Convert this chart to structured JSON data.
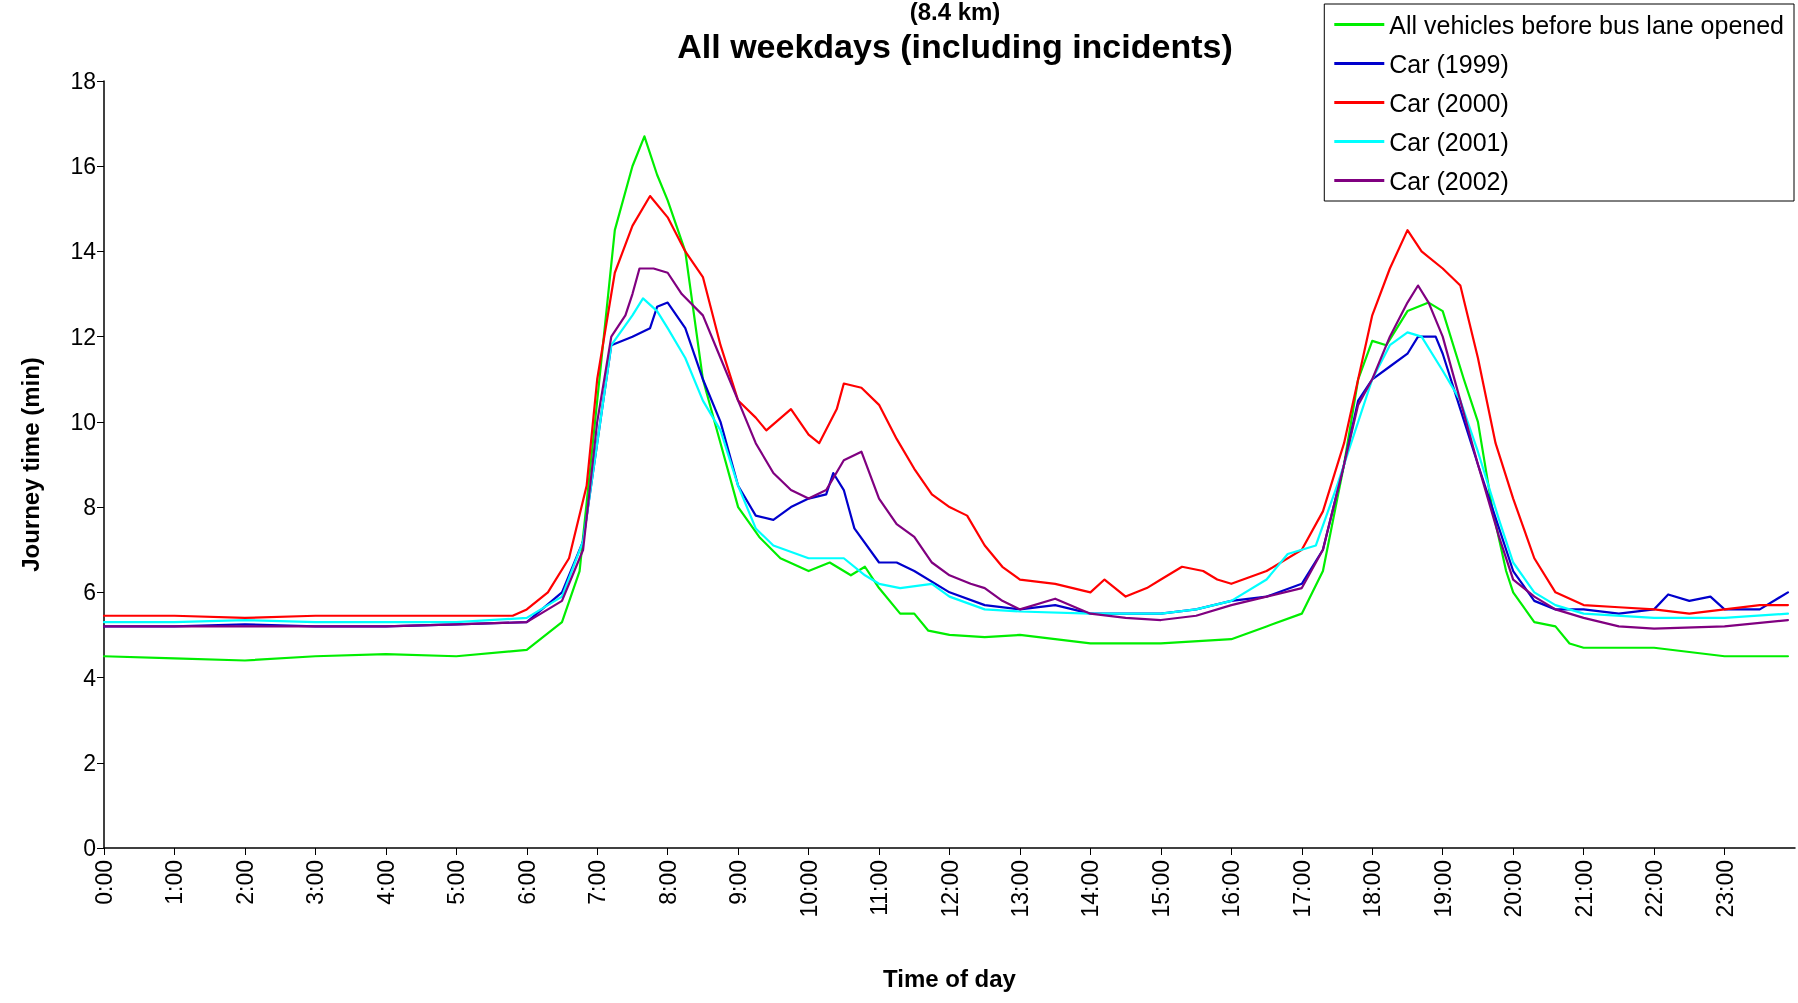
{
  "chart_data": {
    "type": "line",
    "title": "(8.4 km)",
    "subtitle": "All weekdays (including incidents)",
    "xlabel": "Time of day",
    "ylabel": "Journey time (min)",
    "xlim": [
      0,
      24
    ],
    "xticks": [
      {
        "value": 0,
        "label": "0:00"
      },
      {
        "value": 1,
        "label": "1:00"
      },
      {
        "value": 2,
        "label": "2:00"
      },
      {
        "value": 3,
        "label": "3:00"
      },
      {
        "value": 4,
        "label": "4:00"
      },
      {
        "value": 5,
        "label": "5:00"
      },
      {
        "value": 6,
        "label": "6:00"
      },
      {
        "value": 7,
        "label": "7:00"
      },
      {
        "value": 8,
        "label": "8:00"
      },
      {
        "value": 9,
        "label": "9:00"
      },
      {
        "value": 10,
        "label": "10:00"
      },
      {
        "value": 11,
        "label": "11:00"
      },
      {
        "value": 12,
        "label": "12:00"
      },
      {
        "value": 13,
        "label": "13:00"
      },
      {
        "value": 14,
        "label": "14:00"
      },
      {
        "value": 15,
        "label": "15:00"
      },
      {
        "value": 16,
        "label": "16:00"
      },
      {
        "value": 17,
        "label": "17:00"
      },
      {
        "value": 18,
        "label": "18:00"
      },
      {
        "value": 19,
        "label": "19:00"
      },
      {
        "value": 20,
        "label": "20:00"
      },
      {
        "value": 21,
        "label": "21:00"
      },
      {
        "value": 22,
        "label": "22:00"
      },
      {
        "value": 23,
        "label": "23:00"
      }
    ],
    "ylim": [
      0,
      18
    ],
    "yticks": [
      0,
      2,
      4,
      6,
      8,
      10,
      12,
      14,
      16,
      18
    ],
    "grid": false,
    "legend": "top right",
    "marker": "none",
    "line_style": "solid",
    "series": [
      {
        "name": "All vehicles before bus lane opened",
        "color": "#00ee00",
        "x": [
          0,
          1,
          2,
          3,
          4,
          5,
          6,
          6.5,
          6.75,
          7,
          7.25,
          7.5,
          7.67,
          7.85,
          8,
          8.25,
          8.5,
          8.75,
          9,
          9.3,
          9.6,
          10,
          10.3,
          10.6,
          10.8,
          11,
          11.3,
          11.5,
          11.7,
          12,
          12.5,
          13,
          13.5,
          14,
          15,
          16,
          16.5,
          17,
          17.3,
          17.6,
          17.8,
          18,
          18.2,
          18.5,
          18.8,
          19,
          19.3,
          19.5,
          19.7,
          19.9,
          20,
          20.3,
          20.6,
          20.8,
          21,
          22,
          23,
          23.9
        ],
        "values": [
          4.5,
          4.45,
          4.4,
          4.5,
          4.55,
          4.5,
          4.65,
          5.3,
          6.5,
          10.5,
          14.5,
          16.0,
          16.7,
          15.8,
          15.2,
          14.0,
          11.0,
          9.5,
          8.0,
          7.3,
          6.8,
          6.5,
          6.7,
          6.4,
          6.6,
          6.1,
          5.5,
          5.5,
          5.1,
          5.0,
          4.95,
          5.0,
          4.9,
          4.8,
          4.8,
          4.9,
          5.2,
          5.5,
          6.5,
          9.0,
          11.0,
          11.9,
          11.8,
          12.6,
          12.8,
          12.6,
          11.0,
          10.0,
          8.0,
          6.5,
          6.0,
          5.3,
          5.2,
          4.8,
          4.7,
          4.7,
          4.5,
          4.5
        ]
      },
      {
        "name": "Car (1999)",
        "color": "#0000cc",
        "x": [
          0,
          1,
          2,
          3,
          4,
          5,
          6,
          6.5,
          6.8,
          7,
          7.2,
          7.5,
          7.75,
          7.85,
          8,
          8.25,
          8.5,
          8.75,
          9,
          9.25,
          9.5,
          9.75,
          10,
          10.25,
          10.35,
          10.5,
          10.65,
          11,
          11.25,
          11.5,
          12,
          12.5,
          13,
          13.5,
          14,
          15,
          15.5,
          16,
          16.5,
          17,
          17.3,
          17.6,
          17.8,
          18,
          18.25,
          18.5,
          18.65,
          18.9,
          19,
          19.25,
          19.5,
          19.8,
          20,
          20.3,
          20.6,
          21,
          21.5,
          22,
          22.2,
          22.5,
          22.8,
          23,
          23.5,
          23.9
        ],
        "values": [
          5.2,
          5.2,
          5.25,
          5.2,
          5.2,
          5.25,
          5.3,
          6.0,
          7.2,
          9.5,
          11.8,
          12.0,
          12.2,
          12.7,
          12.8,
          12.2,
          11.0,
          10.0,
          8.5,
          7.8,
          7.7,
          8.0,
          8.2,
          8.3,
          8.8,
          8.4,
          7.5,
          6.7,
          6.7,
          6.5,
          6.0,
          5.7,
          5.6,
          5.7,
          5.5,
          5.5,
          5.6,
          5.8,
          5.9,
          6.2,
          7.0,
          9.0,
          10.5,
          11.0,
          11.3,
          11.6,
          12.0,
          12.0,
          11.6,
          10.3,
          9.0,
          7.5,
          6.5,
          5.8,
          5.6,
          5.6,
          5.5,
          5.6,
          5.95,
          5.8,
          5.9,
          5.6,
          5.6,
          6.0
        ]
      },
      {
        "name": "Car (2000)",
        "color": "#ff0000",
        "x": [
          0,
          1,
          2,
          3,
          4,
          5,
          5.8,
          6,
          6.3,
          6.6,
          6.85,
          7,
          7.25,
          7.5,
          7.75,
          8,
          8.25,
          8.5,
          8.75,
          9,
          9.25,
          9.4,
          9.75,
          10,
          10.15,
          10.4,
          10.5,
          10.75,
          11,
          11.25,
          11.5,
          11.75,
          12,
          12.25,
          12.5,
          12.75,
          13,
          13.5,
          14,
          14.2,
          14.5,
          14.8,
          15,
          15.3,
          15.6,
          15.8,
          16,
          16.5,
          17,
          17.3,
          17.6,
          17.8,
          18,
          18.25,
          18.5,
          18.7,
          19,
          19.25,
          19.5,
          19.75,
          20,
          20.3,
          20.6,
          21,
          21.5,
          22,
          22.5,
          23,
          23.5,
          23.9
        ],
        "values": [
          5.45,
          5.45,
          5.4,
          5.45,
          5.45,
          5.45,
          5.45,
          5.6,
          6.0,
          6.8,
          8.5,
          11.0,
          13.5,
          14.6,
          15.3,
          14.8,
          14.0,
          13.4,
          11.8,
          10.5,
          10.1,
          9.8,
          10.3,
          9.7,
          9.5,
          10.3,
          10.9,
          10.8,
          10.4,
          9.6,
          8.9,
          8.3,
          8.0,
          7.8,
          7.1,
          6.6,
          6.3,
          6.2,
          6.0,
          6.3,
          5.9,
          6.1,
          6.3,
          6.6,
          6.5,
          6.3,
          6.2,
          6.5,
          7.0,
          7.9,
          9.5,
          11.0,
          12.5,
          13.6,
          14.5,
          14.0,
          13.6,
          13.2,
          11.5,
          9.5,
          8.2,
          6.8,
          6.0,
          5.7,
          5.65,
          5.6,
          5.5,
          5.6,
          5.7,
          5.7
        ]
      },
      {
        "name": "Car (2001)",
        "color": "#00ffff",
        "x": [
          0,
          1,
          2,
          3,
          4,
          5,
          6,
          6.5,
          6.8,
          7,
          7.2,
          7.5,
          7.65,
          7.85,
          8,
          8.25,
          8.5,
          8.75,
          9,
          9.25,
          9.5,
          10,
          10.3,
          10.5,
          10.8,
          11,
          11.3,
          11.75,
          12,
          12.5,
          13,
          14,
          15,
          15.5,
          16,
          16.5,
          16.8,
          17.2,
          17.5,
          17.8,
          18,
          18.25,
          18.5,
          18.7,
          19,
          19.25,
          19.5,
          19.8,
          20,
          20.3,
          20.6,
          21,
          22,
          23,
          23.9
        ],
        "values": [
          5.3,
          5.3,
          5.35,
          5.3,
          5.3,
          5.3,
          5.4,
          5.9,
          7.2,
          9.5,
          11.8,
          12.5,
          12.9,
          12.6,
          12.2,
          11.5,
          10.5,
          9.8,
          8.5,
          7.5,
          7.1,
          6.8,
          6.8,
          6.8,
          6.4,
          6.2,
          6.1,
          6.2,
          5.9,
          5.6,
          5.55,
          5.5,
          5.5,
          5.6,
          5.8,
          6.3,
          6.9,
          7.1,
          8.5,
          10.0,
          11.0,
          11.8,
          12.1,
          12.0,
          11.2,
          10.5,
          9.3,
          7.7,
          6.7,
          6.0,
          5.7,
          5.5,
          5.4,
          5.4,
          5.5
        ]
      },
      {
        "name": "Car (2002)",
        "color": "#800080",
        "x": [
          0,
          1,
          2,
          3,
          4,
          5,
          6,
          6.5,
          6.8,
          7,
          7.2,
          7.4,
          7.5,
          7.6,
          7.8,
          8,
          8.2,
          8.5,
          8.75,
          9,
          9.25,
          9.5,
          9.75,
          10,
          10.25,
          10.5,
          10.75,
          11,
          11.25,
          11.5,
          11.75,
          12,
          12.3,
          12.5,
          12.75,
          13,
          13.5,
          14,
          14.5,
          15,
          15.5,
          16,
          16.5,
          17,
          17.3,
          17.6,
          17.8,
          18,
          18.25,
          18.5,
          18.65,
          18.8,
          19,
          19.25,
          19.5,
          19.8,
          20,
          20.3,
          20.6,
          21,
          21.5,
          22,
          23,
          23.9
        ],
        "values": [
          5.2,
          5.2,
          5.2,
          5.2,
          5.2,
          5.25,
          5.3,
          5.8,
          7.0,
          10.0,
          12.0,
          12.5,
          13.0,
          13.6,
          13.6,
          13.5,
          13.0,
          12.5,
          11.5,
          10.5,
          9.5,
          8.8,
          8.4,
          8.2,
          8.4,
          9.1,
          9.3,
          8.2,
          7.6,
          7.3,
          6.7,
          6.4,
          6.2,
          6.1,
          5.8,
          5.6,
          5.85,
          5.5,
          5.4,
          5.35,
          5.45,
          5.7,
          5.9,
          6.1,
          7.0,
          9.0,
          10.4,
          11.0,
          12.0,
          12.8,
          13.2,
          12.8,
          12.0,
          10.5,
          9.0,
          7.3,
          6.3,
          5.9,
          5.6,
          5.4,
          5.2,
          5.15,
          5.2,
          5.35
        ]
      }
    ]
  }
}
